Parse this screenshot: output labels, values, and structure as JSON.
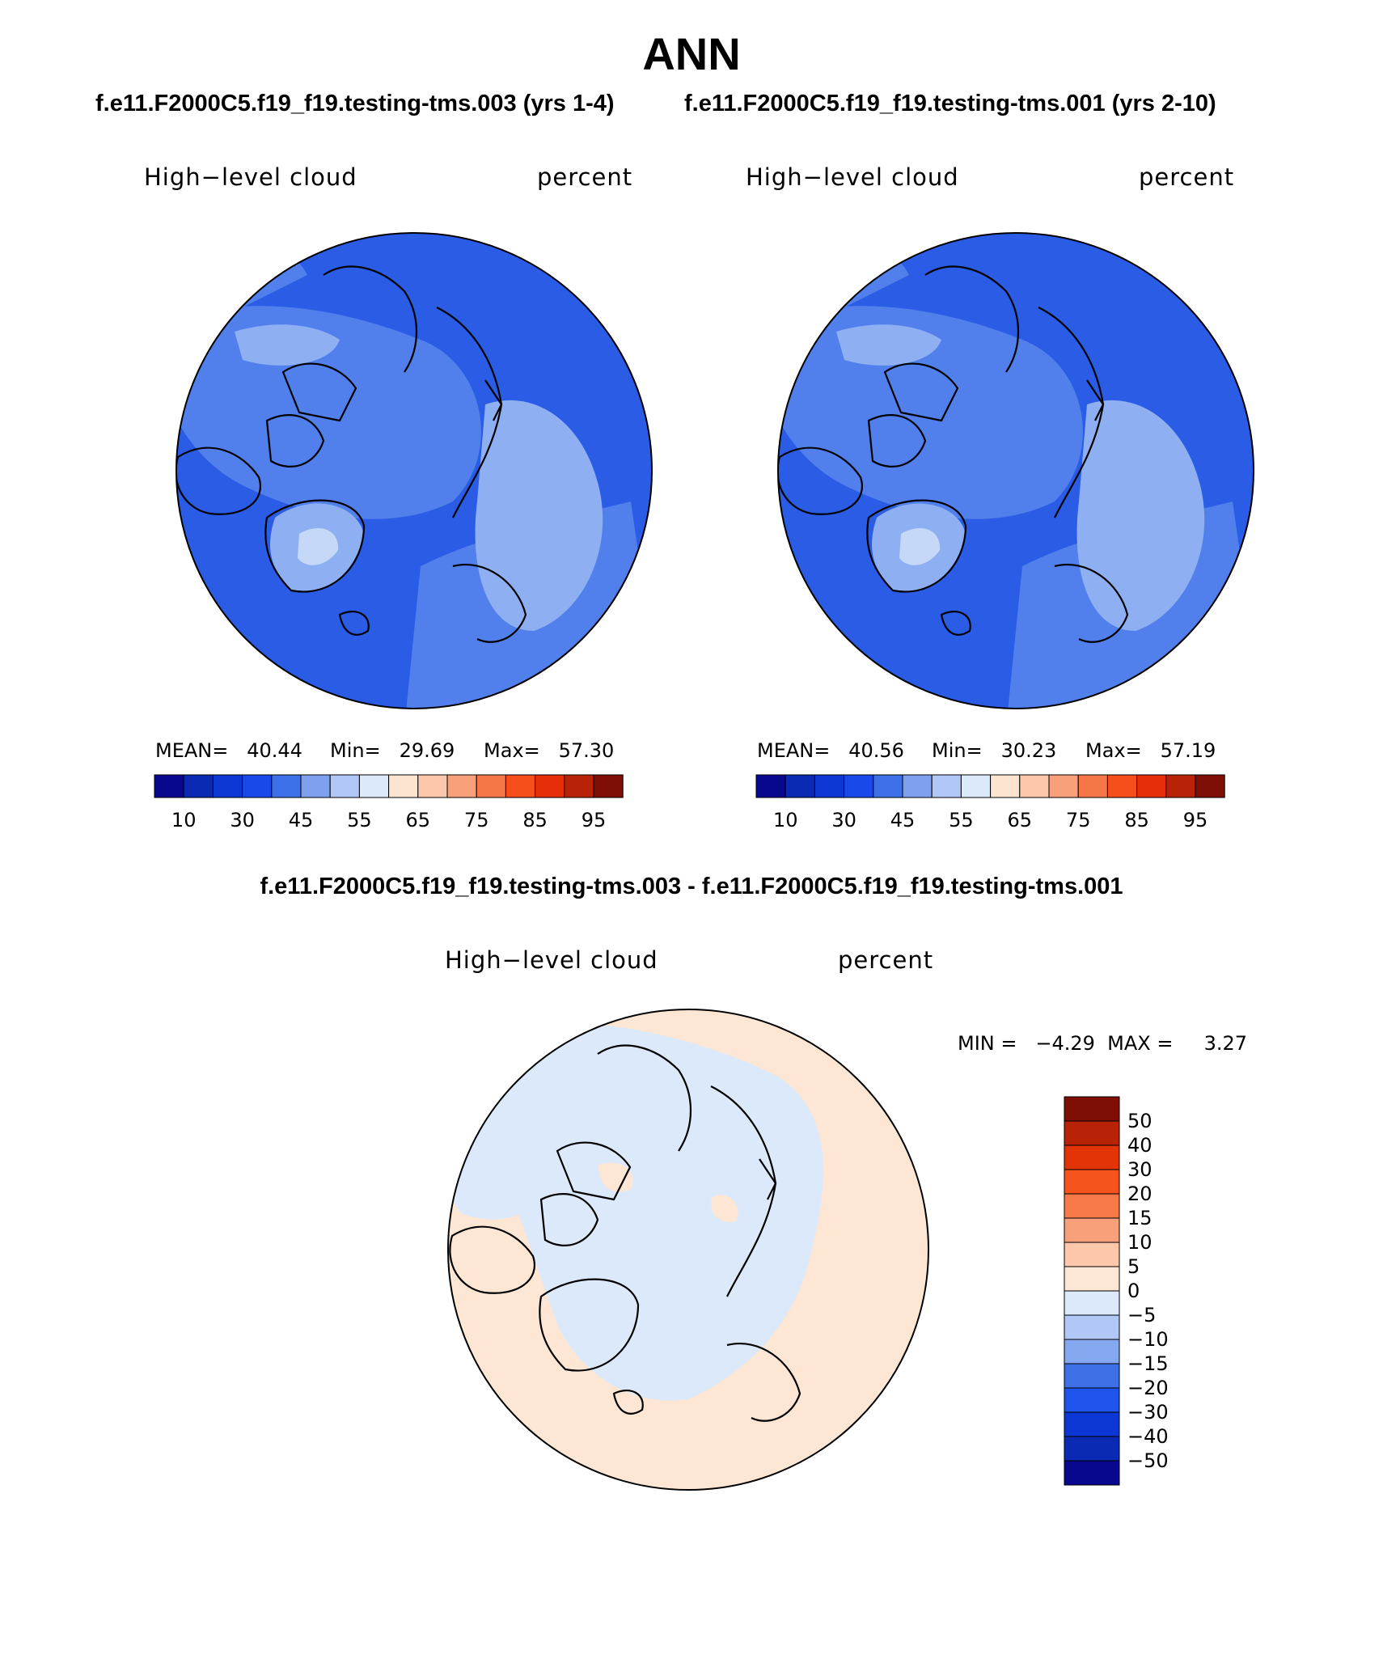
{
  "season": "ANN",
  "case_left_title": "f.e11.F2000C5.f19_f19.testing-tms.003 (yrs 1-4)",
  "case_right_title": "f.e11.F2000C5.f19_f19.testing-tms.001 (yrs 2-10)",
  "diff_title": "f.e11.F2000C5.f19_f19.testing-tms.003 - f.e11.F2000C5.f19_f19.testing-tms.001",
  "variable": "High−level cloud",
  "units": "percent",
  "panels": [
    {
      "mean": "MEAN=   40.44",
      "min": "Min=   29.69",
      "max": "Max=   57.30"
    },
    {
      "mean": "MEAN=   40.56",
      "min": "Min=   30.23",
      "max": "Max=   57.19"
    }
  ],
  "diff_stats": "MIN =   −4.29  MAX =     3.27",
  "colorbar": {
    "colors": [
      "#08088f",
      "#0a2ab4",
      "#0d37d4",
      "#1a49ea",
      "#3d6fe6",
      "#7fa0ee",
      "#b1c8f6",
      "#dbe9fb",
      "#fde4d0",
      "#fcc7ab",
      "#f8a07a",
      "#f67648",
      "#f64e1c",
      "#e62e08",
      "#b82206",
      "#7f0e05"
    ],
    "labels": [
      "10",
      "30",
      "45",
      "55",
      "65",
      "75",
      "85",
      "95"
    ]
  },
  "diff_colorbar": {
    "colors": [
      "#7f0e05",
      "#b82206",
      "#e23406",
      "#f6541c",
      "#f87a48",
      "#f8a07a",
      "#fcc7ab",
      "#fde6d3",
      "#dbe9fb",
      "#b1c8f6",
      "#85a7f0",
      "#3d6fe6",
      "#1e53ec",
      "#0d37d4",
      "#0a2ab4",
      "#08088f"
    ],
    "labels": [
      "50",
      "40",
      "30",
      "20",
      "15",
      "10",
      "5",
      "0",
      "−5",
      "−10",
      "−15",
      "−20",
      "−30",
      "−40",
      "−50"
    ]
  },
  "map_colors": {
    "base": "#2a5ce6",
    "mid": "#5180ec",
    "light": "#8eb0f2",
    "pale": "#c6d8f8",
    "diff_neg": "#dbe9fb",
    "diff_pos": "#fde6d3"
  }
}
